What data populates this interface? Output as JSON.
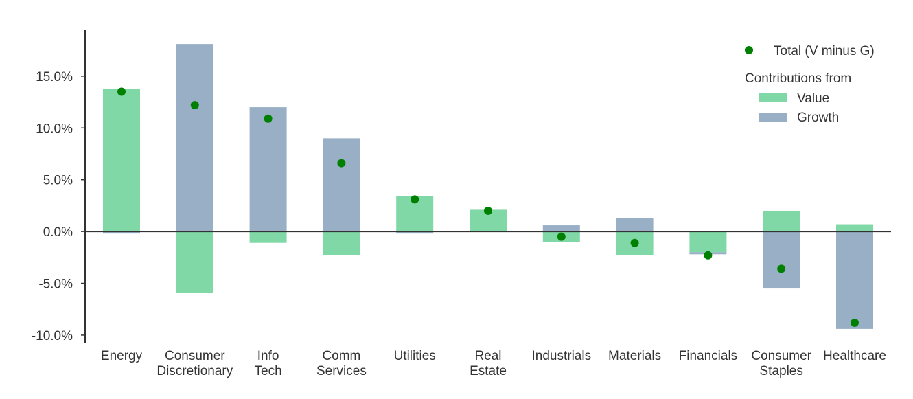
{
  "chart_data": {
    "type": "bar",
    "categories": [
      [
        "Energy"
      ],
      [
        "Consumer",
        "Discretionary"
      ],
      [
        "Info",
        "Tech"
      ],
      [
        "Comm",
        "Services"
      ],
      [
        "Utilities"
      ],
      [
        "Real",
        "Estate"
      ],
      [
        "Industrials"
      ],
      [
        "Materials"
      ],
      [
        "Financials"
      ],
      [
        "Consumer",
        "Staples"
      ],
      [
        "Healthcare"
      ]
    ],
    "series": [
      {
        "name": "Value",
        "kind": "bar",
        "color": "#80d8a6",
        "values": [
          13.8,
          -5.9,
          -1.1,
          -2.3,
          3.4,
          2.1,
          -1.0,
          -2.3,
          -2.0,
          2.0,
          0.7
        ]
      },
      {
        "name": "Growth",
        "kind": "bar",
        "color": "#98afc6",
        "values": [
          -0.2,
          18.1,
          12.0,
          9.0,
          -0.2,
          0.0,
          0.6,
          1.3,
          -0.2,
          -5.5,
          -9.4
        ]
      },
      {
        "name": "Total (V minus G)",
        "kind": "point",
        "color": "#008000",
        "values": [
          13.5,
          12.2,
          10.9,
          6.6,
          3.1,
          2.0,
          -0.5,
          -1.1,
          -2.3,
          -3.6,
          -8.8
        ]
      }
    ],
    "yticks": [
      -10,
      -5,
      0,
      5,
      10,
      15
    ],
    "ytick_labels": [
      "-10.0%",
      "-5.0%",
      "0.0%",
      "5.0%",
      "10.0%",
      "15.0%"
    ],
    "ylim": [
      -10.8,
      19.5
    ],
    "grid": false,
    "legend": {
      "placement": "top-right",
      "total_label": "Total (V minus G)",
      "subtitle": "Contributions from",
      "value_label": "Value",
      "growth_label": "Growth"
    }
  }
}
